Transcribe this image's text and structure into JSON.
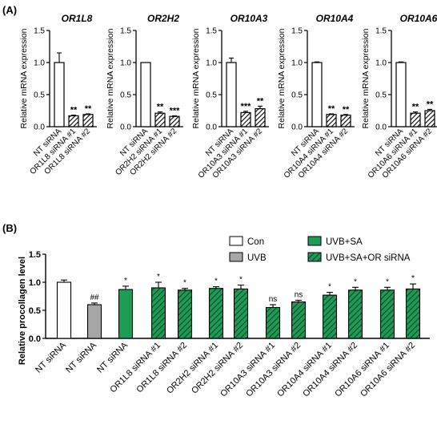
{
  "panel_a_label": "(A)",
  "panel_b_label": "(B)",
  "chart_data": [
    {
      "type": "bar",
      "panel": "A",
      "title": "OR1L8",
      "ylabel": "Relative mRNA expression",
      "ylim": [
        0,
        1.5
      ],
      "yticks": [
        "0.0",
        "0.5",
        "1.0",
        "1.5"
      ],
      "categories": [
        "NT siRNA",
        "OR1L8 siRNA #1",
        "OR1L8 siRNA #2"
      ],
      "values": [
        1.0,
        0.17,
        0.19
      ],
      "errors": [
        0.15,
        0.01,
        0.01
      ],
      "annotations": [
        "",
        "**",
        "**"
      ],
      "styles": [
        "white",
        "hatched",
        "hatched"
      ]
    },
    {
      "type": "bar",
      "panel": "A",
      "title": "OR2H2",
      "ylabel": "Relative mRNA expression",
      "ylim": [
        0,
        1.5
      ],
      "yticks": [
        "0.0",
        "0.5",
        "1.0",
        "1.5"
      ],
      "categories": [
        "NT siRNA",
        "OR2H2 siRNA #1",
        "OR2H2 siRNA #2"
      ],
      "values": [
        1.0,
        0.21,
        0.16
      ],
      "errors": [
        0.0,
        0.02,
        0.01
      ],
      "annotations": [
        "",
        "**",
        "***"
      ],
      "styles": [
        "white",
        "hatched",
        "hatched"
      ]
    },
    {
      "type": "bar",
      "panel": "A",
      "title": "OR10A3",
      "ylabel": "Relative mRNA expression",
      "ylim": [
        0,
        1.5
      ],
      "yticks": [
        "0.0",
        "0.5",
        "1.0",
        "1.5"
      ],
      "categories": [
        "NT siRNA",
        "OR10A3 siRNA #1",
        "OR10A3 siRNA #2"
      ],
      "values": [
        1.0,
        0.22,
        0.28
      ],
      "errors": [
        0.07,
        0.02,
        0.04
      ],
      "annotations": [
        "",
        "***",
        "**"
      ],
      "styles": [
        "white",
        "hatched",
        "hatched"
      ]
    },
    {
      "type": "bar",
      "panel": "A",
      "title": "OR10A4",
      "ylabel": "Relative mRNA expression",
      "ylim": [
        0,
        1.5
      ],
      "yticks": [
        "0.0",
        "0.5",
        "1.0",
        "1.5"
      ],
      "categories": [
        "NT siRNA",
        "OR10A4 siRNA #1",
        "OR10A4 siRNA #2"
      ],
      "values": [
        1.0,
        0.19,
        0.18
      ],
      "errors": [
        0.01,
        0.01,
        0.01
      ],
      "annotations": [
        "",
        "**",
        "**"
      ],
      "styles": [
        "white",
        "hatched",
        "hatched"
      ]
    },
    {
      "type": "bar",
      "panel": "A",
      "title": "OR10A6",
      "ylabel": "Relative mRNA expression",
      "ylim": [
        0,
        1.5
      ],
      "yticks": [
        "0.0",
        "0.5",
        "1.0",
        "1.5"
      ],
      "categories": [
        "NT siRNA",
        "OR10A6 siRNA #1",
        "OR10A6 siRNA #2"
      ],
      "values": [
        1.0,
        0.21,
        0.25
      ],
      "errors": [
        0.01,
        0.02,
        0.02
      ],
      "annotations": [
        "",
        "**",
        "**"
      ],
      "styles": [
        "white",
        "hatched",
        "hatched"
      ]
    },
    {
      "type": "bar",
      "panel": "B",
      "title": "",
      "ylabel": "Relative procollagen level",
      "ylim": [
        0,
        1.5
      ],
      "yticks": [
        "0.0",
        "0.5",
        "1.0",
        "1.5"
      ],
      "categories": [
        "NT siRNA",
        "NT siRNA",
        "NT siRNA",
        "OR1L8 siRNA #1",
        "OR1L8 siRNA #2",
        "OR2H2 siRNA #1",
        "OR2H2 siRNA #2",
        "OR10A3 siRNA #1",
        "OR10A3 siRNA #2",
        "OR10A4 siRNA #1",
        "OR10A4 siRNA #2",
        "OR10A6 siRNA #1",
        "OR10A6 siRNA #2"
      ],
      "values": [
        1.0,
        0.6,
        0.87,
        0.9,
        0.86,
        0.89,
        0.88,
        0.55,
        0.65,
        0.77,
        0.86,
        0.86,
        0.88
      ],
      "errors": [
        0.04,
        0.03,
        0.06,
        0.1,
        0.03,
        0.03,
        0.07,
        0.05,
        0.03,
        0.05,
        0.05,
        0.05,
        0.09
      ],
      "annotations": [
        "",
        "##",
        "*",
        "*",
        "*",
        "*",
        "*",
        "ns",
        "ns",
        "*",
        "*",
        "*",
        "*"
      ],
      "groups": [
        "Con",
        "UVB",
        "UVB+SA",
        "UVB+SA+OR siRNA",
        "UVB+SA+OR siRNA",
        "UVB+SA+OR siRNA",
        "UVB+SA+OR siRNA",
        "UVB+SA+OR siRNA",
        "UVB+SA+OR siRNA",
        "UVB+SA+OR siRNA",
        "UVB+SA+OR siRNA",
        "UVB+SA+OR siRNA",
        "UVB+SA+OR siRNA"
      ],
      "legend": {
        "position": "top-right",
        "entries": [
          {
            "name": "Con",
            "fill": "#ffffff",
            "hatch": false
          },
          {
            "name": "UVB",
            "fill": "#a6a6a6",
            "hatch": false
          },
          {
            "name": "UVB+SA",
            "fill": "#1e9b55",
            "hatch": false
          },
          {
            "name": "UVB+SA+OR siRNA",
            "fill": "#1e9b55",
            "hatch": true
          }
        ]
      }
    }
  ],
  "colors": {
    "green": "#1e9b55",
    "green_dark": "#0f4d2a",
    "grey": "#a6a6a6",
    "axis": "#000000"
  }
}
